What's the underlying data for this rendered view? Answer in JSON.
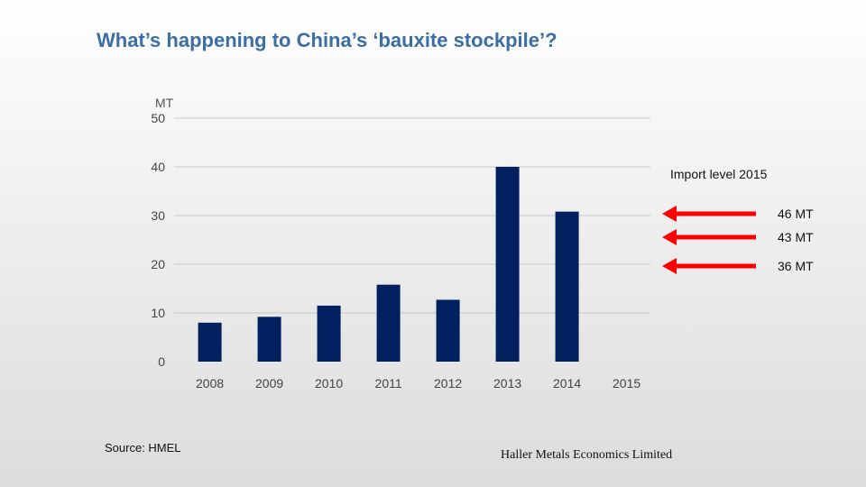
{
  "title": "What’s happening to China’s ‘bauxite stockpile’?",
  "source": "Source: HMEL",
  "footer": "Haller Metals Economics Limited",
  "colors": {
    "bar": "#002060",
    "arrow": "#ff0000",
    "grid": "#c8c8c8",
    "title": "#3b6ea5"
  },
  "chart_data": {
    "type": "bar",
    "ylabel": "MT",
    "xlabel": "",
    "ylim": [
      0,
      50
    ],
    "yticks": [
      0,
      10,
      20,
      30,
      40,
      50
    ],
    "categories": [
      "2008",
      "2009",
      "2010",
      "2011",
      "2012",
      "2013",
      "2014",
      "2015"
    ],
    "values": [
      8,
      9.2,
      11.5,
      15.8,
      12.7,
      40,
      30.8,
      null
    ],
    "grid": true,
    "annotations": {
      "title": "Import level 2015",
      "arrows": [
        {
          "label": "46 MT",
          "value": 46
        },
        {
          "label": "43 MT",
          "value": 43
        },
        {
          "label": "36 MT",
          "value": 36
        }
      ]
    }
  }
}
